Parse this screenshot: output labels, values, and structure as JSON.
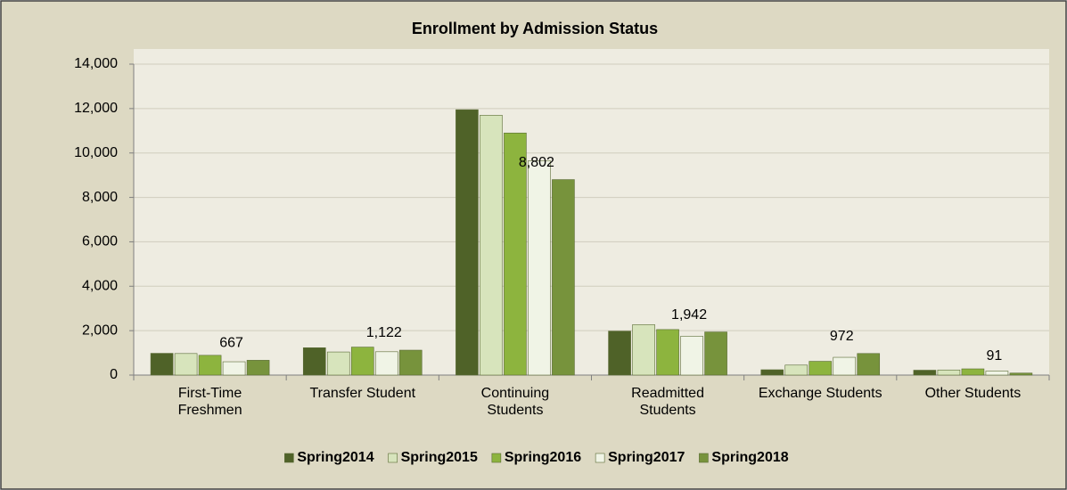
{
  "chart_data": {
    "type": "bar",
    "title": "Enrollment by Admission Status",
    "categories": [
      "First-Time Freshmen",
      "Transfer Student",
      "Continuing Students",
      "Readmitted Students",
      "Exchange Students",
      "Other Students"
    ],
    "series": [
      {
        "name": "Spring2014",
        "color": "#4f6228",
        "values": [
          980,
          1230,
          11950,
          1980,
          240,
          220
        ]
      },
      {
        "name": "Spring2015",
        "color": "#d7e4bc",
        "values": [
          970,
          1040,
          11700,
          2270,
          450,
          230
        ]
      },
      {
        "name": "Spring2016",
        "color": "#8db43e",
        "values": [
          890,
          1260,
          10900,
          2050,
          620,
          280
        ]
      },
      {
        "name": "Spring2017",
        "color": "#f0f4e6",
        "values": [
          600,
          1050,
          9650,
          1750,
          800,
          180
        ]
      },
      {
        "name": "Spring2018",
        "color": "#77933c",
        "values": [
          667,
          1122,
          8802,
          1942,
          972,
          91
        ],
        "value_labels": [
          "667",
          "1,122",
          "8,802",
          "1,942",
          "972",
          "91"
        ]
      }
    ],
    "ylim": [
      0,
      14000
    ],
    "yticks": [
      0,
      {
        "value": 2000,
        "label": "2,000"
      },
      {
        "value": 4000,
        "label": "4,000"
      },
      {
        "value": 6000,
        "label": "6,000"
      },
      {
        "value": 8000,
        "label": "8,000"
      },
      {
        "value": 10000,
        "label": "10,000"
      },
      {
        "value": 12000,
        "label": "12,000"
      },
      {
        "value": 14000,
        "label": "14,000"
      }
    ],
    "grid": true,
    "legend": "bottom"
  }
}
